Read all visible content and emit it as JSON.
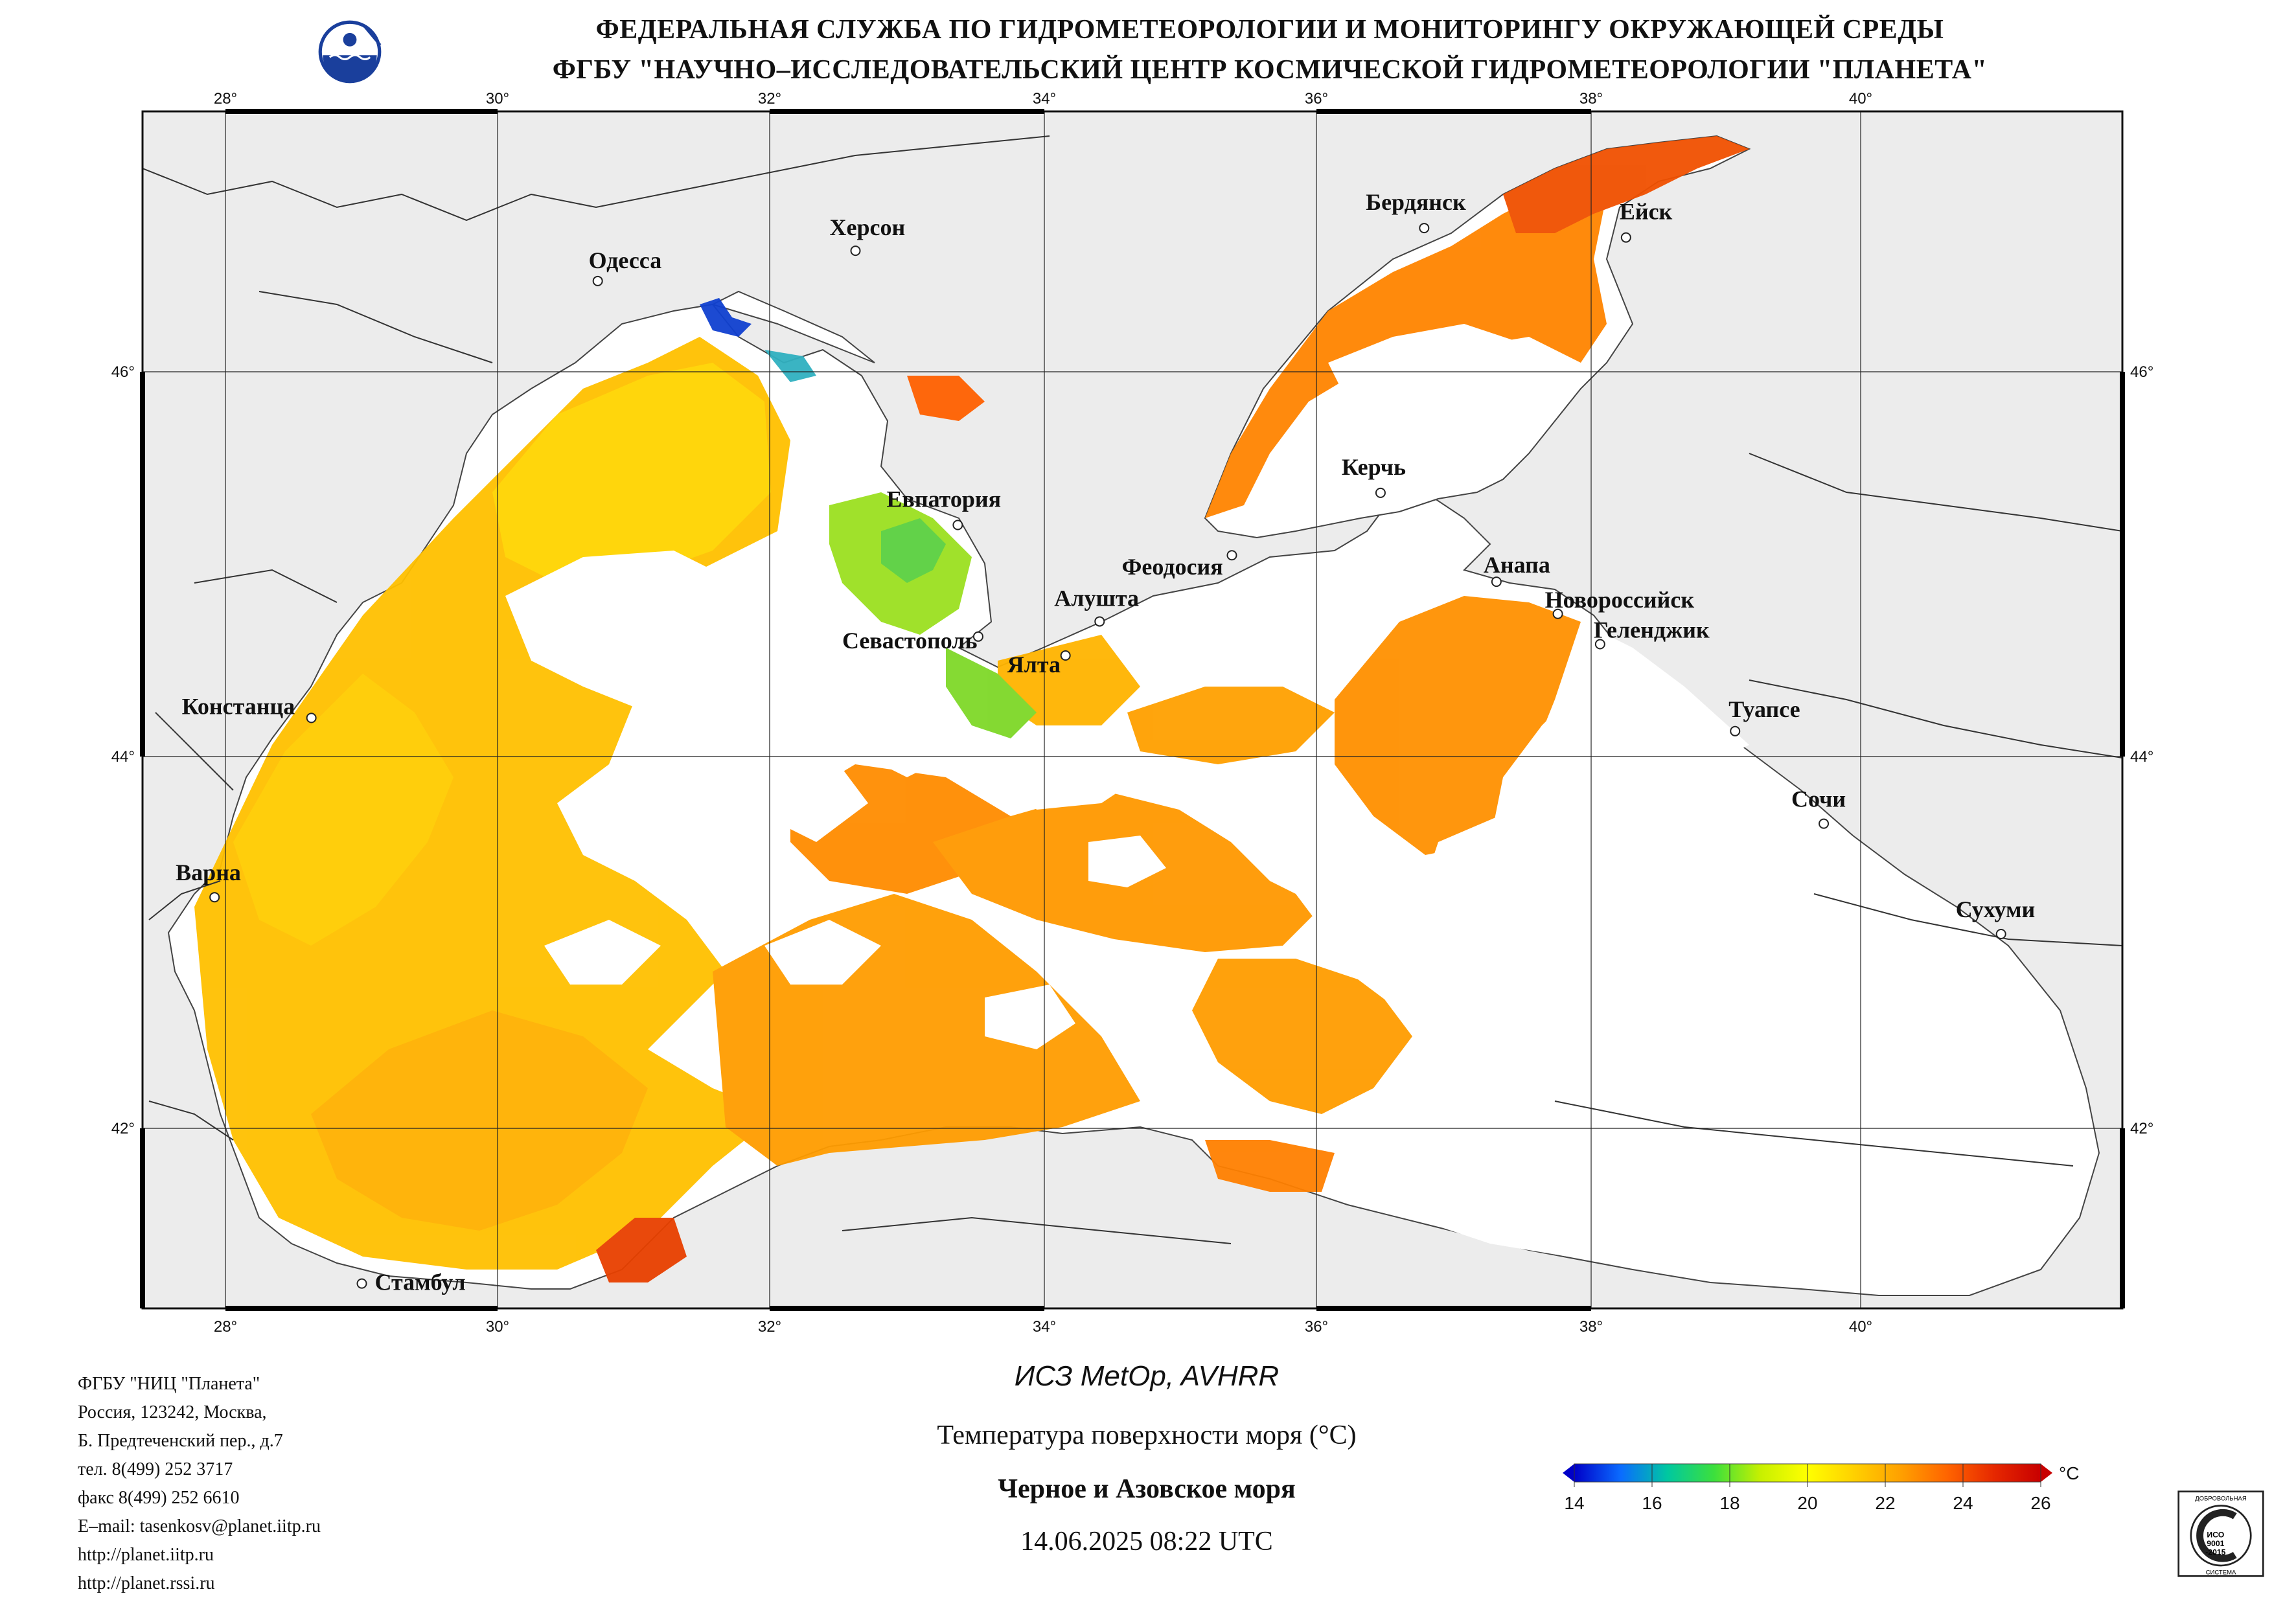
{
  "header": {
    "line1": "ФЕДЕРАЛЬНАЯ СЛУЖБА ПО ГИДРОМЕТЕОРОЛОГИИ И МОНИТОРИНГУ ОКРУЖАЮЩЕЙ СРЕДЫ",
    "line2": "ФГБУ \"НАУЧНО–ИССЛЕДОВАТЕЛЬСКИЙ ЦЕНТР КОСМИЧЕСКОЙ ГИДРОМЕТЕОРОЛОГИИ \"ПЛАНЕТА\""
  },
  "map": {
    "lon_ticks": [
      "28°",
      "30°",
      "32°",
      "34°",
      "36°",
      "38°",
      "40°"
    ],
    "lat_ticks": [
      "46°",
      "44°",
      "42°"
    ],
    "cities": [
      {
        "name": "Одесса",
        "lon": 30.73,
        "lat": 46.48
      },
      {
        "name": "Херсон",
        "lon": 32.62,
        "lat": 46.64
      },
      {
        "name": "Бердянск",
        "lon": 36.79,
        "lat": 46.76
      },
      {
        "name": "Ейск",
        "lon": 38.27,
        "lat": 46.71
      },
      {
        "name": "Евпатория",
        "lon": 33.37,
        "lat": 45.19
      },
      {
        "name": "Керчь",
        "lon": 36.47,
        "lat": 45.36
      },
      {
        "name": "Феодосия",
        "lon": 35.38,
        "lat": 45.03
      },
      {
        "name": "Анапа",
        "lon": 37.32,
        "lat": 44.89
      },
      {
        "name": "Новороссийск",
        "lon": 37.77,
        "lat": 44.72
      },
      {
        "name": "Геленджик",
        "lon": 38.08,
        "lat": 44.56
      },
      {
        "name": "Алушта",
        "lon": 34.41,
        "lat": 44.68
      },
      {
        "name": "Севастополь",
        "lon": 33.52,
        "lat": 44.6
      },
      {
        "name": "Ялта",
        "lon": 34.16,
        "lat": 44.5
      },
      {
        "name": "Констанца",
        "lon": 28.63,
        "lat": 44.17
      },
      {
        "name": "Туапсе",
        "lon": 39.07,
        "lat": 44.1
      },
      {
        "name": "Сочи",
        "lon": 39.72,
        "lat": 43.6
      },
      {
        "name": "Варна",
        "lon": 27.92,
        "lat": 43.2
      },
      {
        "name": "Сухуми",
        "lon": 41.02,
        "lat": 43.0
      },
      {
        "name": "Стамбул",
        "lon": 29.0,
        "lat": 41.1
      }
    ]
  },
  "colorbar": {
    "ticks": [
      "14",
      "16",
      "18",
      "20",
      "22",
      "24",
      "26"
    ],
    "unit": "°C",
    "colors": [
      "#0000c8",
      "#0a6cff",
      "#00c8a0",
      "#3ce03c",
      "#c8f000",
      "#ffff00",
      "#ffd000",
      "#ffa000",
      "#ff6400",
      "#e62800",
      "#c80000"
    ]
  },
  "info": {
    "lines": [
      "ФГБУ \"НИЦ \"Планета\"",
      "Россия, 123242, Москва,",
      "Б. Предтеченский пер., д.7",
      "тел. 8(499) 252 3717",
      "факс 8(499) 252 6610",
      "E–mail: tasenkosv@planet.iitp.ru",
      "http://planet.iitp.ru",
      "http://planet.rssi.ru"
    ]
  },
  "satellite": "ИСЗ MetOp, AVHRR",
  "parameter": "Температура поверхности моря (°C)",
  "region": "Черное и Азовское моря",
  "datetime": "14.06.2025 08:22 UTC",
  "certificate": {
    "top": "ДОБРОВОЛЬНАЯ",
    "mid": "ИСО 9001 -2015",
    "bottom": "СИСТЕМА"
  }
}
